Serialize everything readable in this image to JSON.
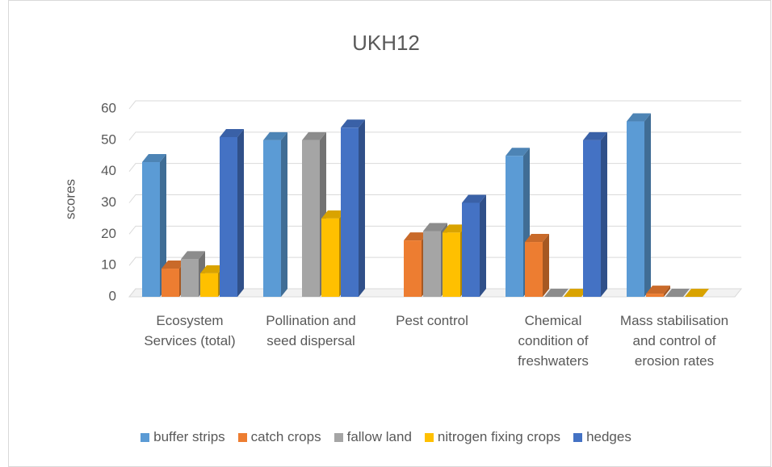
{
  "chart_data": {
    "type": "bar3d",
    "title": "UKH12",
    "y_label": "scores",
    "categories": [
      "Ecosystem Services (total)",
      "Pollination and seed dispersal",
      "Pest control",
      "Chemical condition of freshwaters",
      "Mass stabilisation and control of erosion rates"
    ],
    "series": [
      {
        "name": "buffer strips",
        "color": "#5b9bd5",
        "values": [
          43,
          50,
          null,
          45,
          56
        ]
      },
      {
        "name": "catch crops",
        "color": "#ed7d31",
        "values": [
          9,
          null,
          18,
          17.5,
          1
        ]
      },
      {
        "name": "fallow land",
        "color": "#a5a5a5",
        "values": [
          12,
          50,
          21,
          0,
          0
        ]
      },
      {
        "name": "nitrogen fixing crops",
        "color": "#ffc000",
        "values": [
          7.5,
          25,
          20.5,
          0,
          0
        ]
      },
      {
        "name": "hedges",
        "color": "#4472c4",
        "values": [
          51,
          54,
          30,
          50,
          null
        ]
      }
    ],
    "ylim": [
      0,
      60
    ],
    "yticks": [
      0,
      10,
      20,
      30,
      40,
      50,
      60
    ],
    "grid": true,
    "legend": "bottom"
  }
}
